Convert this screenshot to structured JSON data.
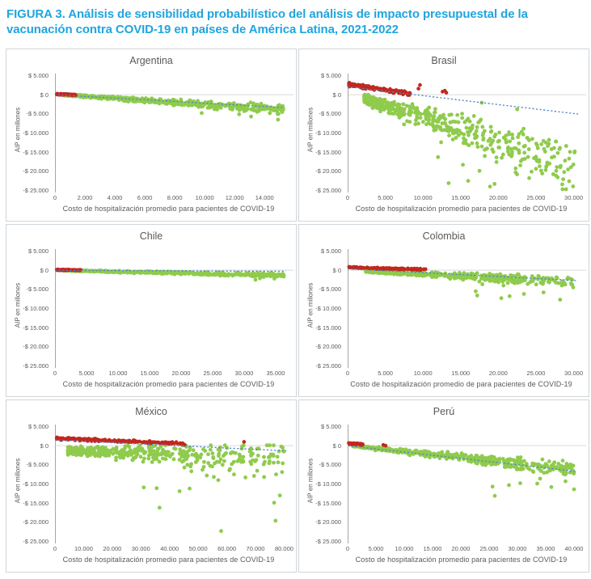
{
  "figure": {
    "title": "FIGURA 3. Análisis de sensibilidad probabilístico del análisis de impacto presupuestal de la vacunación contra COVID-19 en países de América Latina, 2021-2022"
  },
  "palette": {
    "title_blue": "#1fa5de",
    "green_dot": "#8fcb4d",
    "red_dot": "#c3271d",
    "trend_blue": "#4f86c6",
    "axis_line": "#a6a6a6",
    "zero_gridline": "#d9d9d9",
    "label_text": "#595959",
    "panel_border": "#cfd5da"
  },
  "chart_data": {
    "type": "scatter",
    "ylabel": "AIP en millones",
    "ylim": [
      5000,
      -25000
    ],
    "y_tick_values": [
      5000,
      0,
      -5000,
      -10000,
      -15000,
      -20000,
      -25000
    ],
    "y_tick_labels": [
      "$ 5.000",
      "$ 0",
      "-$ 5.000",
      "-$ 10.000",
      "-$ 15.000",
      "-$ 20.000",
      "-$ 25.000"
    ],
    "legend": "none",
    "grid": "zero-line-only",
    "charts": [
      {
        "title": "Argentina",
        "xlabel": "Costo de hospitalización promedio para pacientes de COVID-19",
        "xlim": [
          0,
          15500
        ],
        "x_tick_values": [
          0,
          2000,
          4000,
          6000,
          8000,
          10000,
          12000,
          14000
        ],
        "x_tick_labels": [
          "0",
          "2.000",
          "4.000",
          "6.000",
          "8.000",
          "10.000",
          "12.000",
          "14.000"
        ],
        "trend": {
          "x1": 200,
          "y1": -150,
          "x2": 15300,
          "y2": -3450
        },
        "green": {
          "n": 480,
          "x_min": 600,
          "x_max": 15300,
          "x_pow": 1.25,
          "intercept": 0,
          "slope": -0.26,
          "spread_base": 180,
          "spread_slope": 0.085,
          "skew_frac": 0.1,
          "skew_amt": 1300,
          "clamp_top": 250,
          "outliers": [
            [
              14900,
              -6600
            ],
            [
              13100,
              -5800
            ],
            [
              12300,
              -5200
            ],
            [
              9800,
              -4900
            ]
          ]
        },
        "red": {
          "n": 75,
          "x_min": 120,
          "x_max": 1400,
          "x_pow": 1.0,
          "intercept": 60,
          "slope": -0.15,
          "spread": 170,
          "clamp_top": 350,
          "clamp_bottom": -420,
          "outliers": []
        }
      },
      {
        "title": "Brasil",
        "xlabel": "Costo de hospitalización promedio para pacientes de COVID-19",
        "xlim": [
          0,
          30800
        ],
        "x_tick_values": [
          0,
          5000,
          10000,
          15000,
          20000,
          25000,
          30000
        ],
        "x_tick_labels": [
          "0",
          "5.000",
          "10.000",
          "15.000",
          "20.000",
          "25.000",
          "30.000"
        ],
        "trend": {
          "x1": 0,
          "y1": 2000,
          "x2": 30600,
          "y2": -5150
        },
        "green": {
          "n": 520,
          "x_min": 2200,
          "x_max": 30200,
          "x_pow": 1.85,
          "intercept": 300,
          "slope": -0.62,
          "spread_base": 650,
          "spread_slope": 0.27,
          "skew_frac": 0.16,
          "skew_amt": 9000,
          "clamp_top": 300,
          "outliers": [
            [
              13400,
              -23200
            ],
            [
              16000,
              -22600
            ],
            [
              17500,
              -20000
            ],
            [
              18900,
              -24100
            ],
            [
              19500,
              -23400
            ],
            [
              15300,
              -18400
            ],
            [
              18200,
              -16100
            ],
            [
              22300,
              -20400
            ],
            [
              23200,
              -17000
            ],
            [
              25000,
              -16300
            ],
            [
              29400,
              -16800
            ],
            [
              26800,
              -18100
            ],
            [
              12000,
              -16400
            ],
            [
              17800,
              -2200
            ],
            [
              22500,
              -3900
            ]
          ]
        },
        "red": {
          "n": 175,
          "x_min": 150,
          "x_max": 8300,
          "x_pow": 1.15,
          "intercept": 2600,
          "slope": -0.3,
          "spread": 520,
          "clamp_top": 3400,
          "clamp_bottom": -250,
          "outliers": [
            [
              9600,
              2450
            ],
            [
              12600,
              700
            ],
            [
              13100,
              420
            ],
            [
              12900,
              950
            ],
            [
              9400,
              1500
            ]
          ]
        }
      },
      {
        "title": "Chile",
        "xlabel": "Costo de hospitalización promedio para pacientes de COVID-19",
        "xlim": [
          0,
          36800
        ],
        "x_tick_values": [
          0,
          5000,
          10000,
          15000,
          20000,
          25000,
          30000,
          35000
        ],
        "x_tick_labels": [
          "0",
          "5.000",
          "10.000",
          "15.000",
          "20.000",
          "25.000",
          "30.000",
          "35.000"
        ],
        "trend": {
          "x1": 0,
          "y1": -140,
          "x2": 36600,
          "y2": -380
        },
        "green": {
          "n": 470,
          "x_min": 1200,
          "x_max": 36300,
          "x_pow": 1.15,
          "intercept": -80,
          "slope": -0.038,
          "spread_base": 140,
          "spread_slope": 0.013,
          "skew_frac": 0.08,
          "skew_amt": 500,
          "clamp_top": 150,
          "outliers": [
            [
              31800,
              -2600
            ],
            [
              34800,
              -2300
            ],
            [
              32500,
              -2200
            ]
          ]
        },
        "red": {
          "n": 60,
          "x_min": 250,
          "x_max": 4100,
          "x_pow": 1.0,
          "intercept": 0,
          "slope": -0.02,
          "spread": 150,
          "clamp_top": 260,
          "clamp_bottom": -420,
          "outliers": []
        }
      },
      {
        "title": "Colombia",
        "xlabel": "Costo de hospitalización promedio de para pacientes de COVID-19",
        "xlim": [
          0,
          30800
        ],
        "x_tick_values": [
          0,
          5000,
          10000,
          15000,
          20000,
          25000,
          30000
        ],
        "x_tick_labels": [
          "0",
          "5.000",
          "10.000",
          "15.000",
          "20.000",
          "25.000",
          "30.000"
        ],
        "trend": {
          "x1": 0,
          "y1": 260,
          "x2": 30400,
          "y2": -2800
        },
        "green": {
          "n": 430,
          "x_min": 2400,
          "x_max": 30000,
          "x_pow": 1.5,
          "intercept": -100,
          "slope": -0.1,
          "spread_base": 270,
          "spread_slope": 0.048,
          "skew_frac": 0.1,
          "skew_amt": 2600,
          "clamp_top": 150,
          "outliers": [
            [
              17200,
              -6700
            ],
            [
              20400,
              -7400
            ],
            [
              21500,
              -6900
            ],
            [
              23400,
              -6300
            ],
            [
              28200,
              -7800
            ],
            [
              26000,
              -5900
            ],
            [
              17000,
              -5600
            ],
            [
              29800,
              -2600
            ]
          ]
        },
        "red": {
          "n": 130,
          "x_min": 120,
          "x_max": 10400,
          "x_pow": 1.2,
          "intercept": 650,
          "slope": -0.055,
          "spread": 240,
          "clamp_top": 1000,
          "clamp_bottom": -120,
          "outliers": []
        }
      },
      {
        "title": "México",
        "xlabel": "Costo de hospitalización promedio para pacientes de COVID-19",
        "xlim": [
          0,
          81000
        ],
        "x_tick_values": [
          0,
          10000,
          20000,
          30000,
          40000,
          50000,
          60000,
          70000,
          80000
        ],
        "x_tick_labels": [
          "0",
          "10.000",
          "20.000",
          "30.000",
          "40.000",
          "50.000",
          "60.000",
          "70.000",
          "80.000"
        ],
        "trend": {
          "x1": 0,
          "y1": 1400,
          "x2": 80800,
          "y2": -1450
        },
        "green": {
          "n": 420,
          "x_min": 4500,
          "x_max": 80000,
          "x_pow": 1.85,
          "intercept": -1300,
          "slope": -0.026,
          "spread_base": 950,
          "spread_slope": 0.052,
          "skew_frac": 0.14,
          "skew_amt": 5200,
          "clamp_top": 0,
          "outliers": [
            [
              35500,
              -11200
            ],
            [
              36500,
              -16300
            ],
            [
              31000,
              -11000
            ],
            [
              43500,
              -12000
            ],
            [
              47000,
              -11300
            ],
            [
              58000,
              -22400
            ],
            [
              57000,
              -9100
            ],
            [
              62500,
              -7600
            ],
            [
              66500,
              -8400
            ],
            [
              69500,
              -8000
            ],
            [
              76500,
              -15000
            ],
            [
              77000,
              -19700
            ],
            [
              78500,
              -13100
            ],
            [
              79500,
              -4700
            ],
            [
              73000,
              -8300
            ],
            [
              55000,
              -2100
            ],
            [
              60000,
              -700
            ],
            [
              56500,
              -4300
            ],
            [
              58500,
              -5100
            ],
            [
              53000,
              -7900
            ],
            [
              49000,
              -2600
            ],
            [
              51500,
              -6400
            ]
          ]
        },
        "red": {
          "n": 175,
          "x_min": 600,
          "x_max": 45500,
          "x_pow": 1.35,
          "intercept": 1800,
          "slope": -0.03,
          "spread": 400,
          "clamp_top": 2400,
          "clamp_bottom": 150,
          "outliers": [
            [
              66000,
              900
            ]
          ]
        }
      },
      {
        "title": "Perú",
        "xlabel": "Costo de hospitalización promedio para pacientes de COVID-19",
        "xlim": [
          0,
          41000
        ],
        "x_tick_values": [
          0,
          5000,
          10000,
          15000,
          20000,
          25000,
          30000,
          35000,
          40000
        ],
        "x_tick_labels": [
          "0",
          "5.000",
          "10.000",
          "15.000",
          "20.000",
          "25.000",
          "30.000",
          "35.000",
          "40.000"
        ],
        "trend": {
          "x1": 100,
          "y1": -120,
          "x2": 40600,
          "y2": -6850
        },
        "green": {
          "n": 500,
          "x_min": 900,
          "x_max": 40200,
          "x_pow": 1.25,
          "intercept": 0,
          "slope": -0.155,
          "spread_base": 210,
          "spread_slope": 0.05,
          "skew_frac": 0.12,
          "skew_amt": 2400,
          "clamp_top": 200,
          "outliers": [
            [
              26000,
              -13200
            ],
            [
              25600,
              -10800
            ],
            [
              28500,
              -10400
            ],
            [
              30500,
              -9900
            ],
            [
              33500,
              -10000
            ],
            [
              36000,
              -10900
            ],
            [
              40000,
              -11500
            ],
            [
              38500,
              -9400
            ],
            [
              34000,
              -8700
            ]
          ]
        },
        "red": {
          "n": 65,
          "x_min": 150,
          "x_max": 2700,
          "x_pow": 1.0,
          "intercept": 480,
          "slope": -0.09,
          "spread": 230,
          "clamp_top": 900,
          "clamp_bottom": -150,
          "outliers": [
            [
              6300,
              100
            ],
            [
              6700,
              -80
            ]
          ]
        }
      }
    ]
  }
}
